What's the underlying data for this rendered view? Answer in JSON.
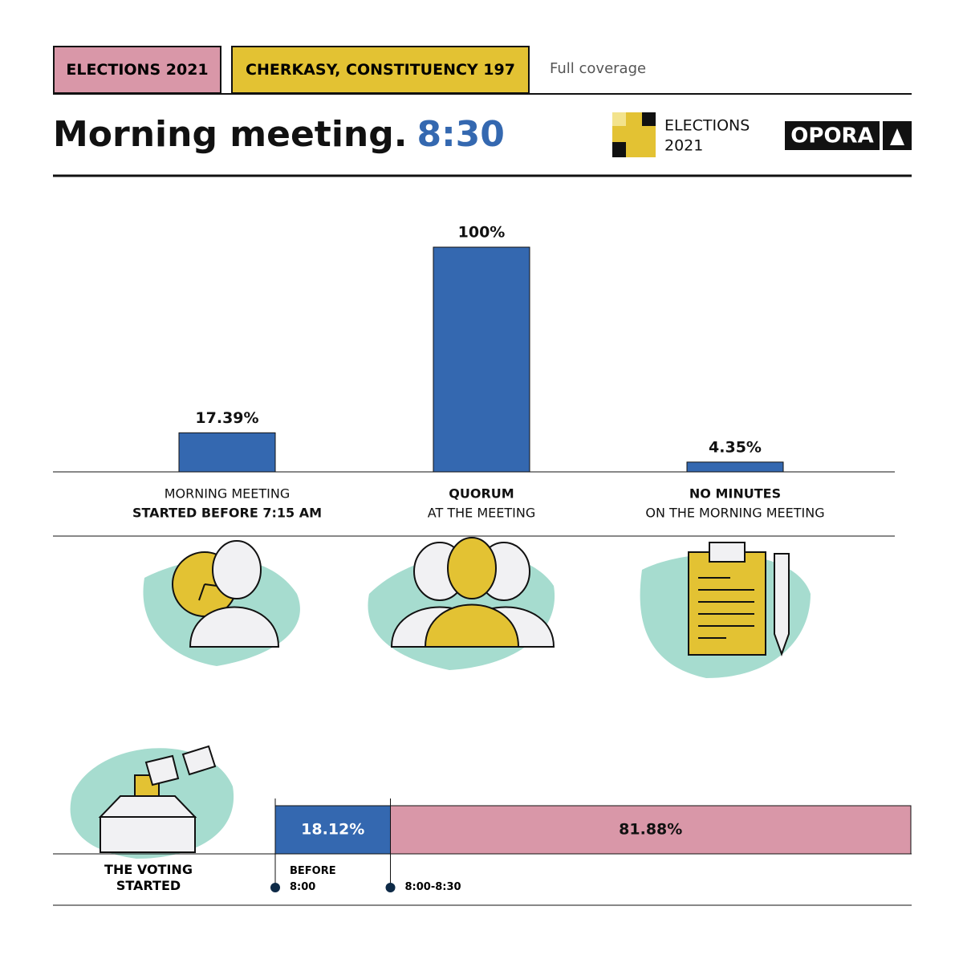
{
  "header": {
    "tags": [
      "ELECTIONS 2021",
      "CHERKASY, CONSTITUENCY 197"
    ],
    "link": "Full coverage",
    "title": "Morning meeting.",
    "time": "8:30",
    "logo_text": [
      "ELECTIONS",
      "2021"
    ],
    "brand": "OPORA"
  },
  "chart_data": [
    {
      "type": "bar",
      "categories": [
        [
          "MORNING MEETING",
          "STARTED BEFORE 7:15 AM"
        ],
        [
          "QUORUM",
          "AT THE MEETING"
        ],
        [
          "NO MINUTES",
          "ON THE MORNING MEETING"
        ]
      ],
      "bold_line": [
        1,
        0,
        0
      ],
      "values": [
        17.39,
        100,
        4.35
      ],
      "value_labels": [
        "17.39%",
        "100%",
        "4.35%"
      ],
      "color": "#3468b0",
      "ylim": [
        0,
        100
      ]
    },
    {
      "type": "stacked_hbar",
      "categories": [
        "THE VOTING STARTED"
      ],
      "xlim": [
        0,
        100
      ],
      "series": [
        {
          "name": "BEFORE 8:00",
          "color": "#3468b0",
          "values": [
            18.12
          ],
          "value_labels": [
            "18.12%"
          ]
        },
        {
          "name": "8:00-8:30",
          "color": "#d997a8",
          "values": [
            81.88
          ],
          "value_labels": [
            "81.88%"
          ]
        }
      ]
    }
  ]
}
